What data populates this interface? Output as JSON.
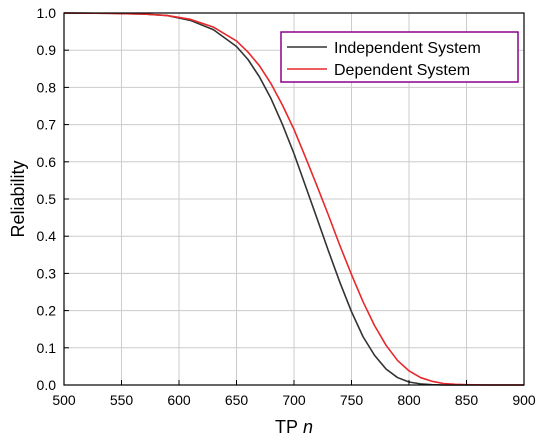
{
  "chart_data": {
    "type": "line",
    "xlabel": "TP",
    "xlabel_italic": "n",
    "ylabel": "Reliability",
    "xlim": [
      500,
      900
    ],
    "ylim": [
      0,
      1.0
    ],
    "xticks": [
      500,
      550,
      600,
      650,
      700,
      750,
      800,
      850,
      900
    ],
    "yticks": [
      0.0,
      0.1,
      0.2,
      0.3,
      0.4,
      0.5,
      0.6,
      0.7,
      0.8,
      0.9,
      1.0
    ],
    "ytick_labels": [
      "0.0",
      "0.1",
      "0.2",
      "0.3",
      "0.4",
      "0.5",
      "0.6",
      "0.7",
      "0.8",
      "0.9",
      "1.0"
    ],
    "grid": true,
    "legend_position": "top-right",
    "legend_border_color": "#8B008B",
    "series": [
      {
        "name": "Independent System",
        "color": "#333333",
        "x": [
          500,
          540,
          570,
          590,
          610,
          630,
          650,
          660,
          670,
          680,
          690,
          700,
          710,
          720,
          730,
          740,
          750,
          760,
          770,
          780,
          790,
          800,
          810,
          820,
          830,
          850,
          900
        ],
        "y": [
          1.0,
          0.999,
          0.997,
          0.993,
          0.98,
          0.955,
          0.91,
          0.875,
          0.828,
          0.77,
          0.7,
          0.622,
          0.535,
          0.448,
          0.36,
          0.275,
          0.197,
          0.13,
          0.08,
          0.043,
          0.02,
          0.008,
          0.003,
          0.001,
          0.0,
          0.0,
          0.0
        ]
      },
      {
        "name": "Dependent System",
        "color": "#E8282B",
        "x": [
          500,
          540,
          570,
          590,
          610,
          630,
          650,
          660,
          670,
          680,
          690,
          700,
          710,
          720,
          730,
          740,
          750,
          760,
          770,
          780,
          790,
          800,
          810,
          820,
          830,
          840,
          850,
          870,
          900
        ],
        "y": [
          1.0,
          0.999,
          0.997,
          0.993,
          0.983,
          0.962,
          0.925,
          0.895,
          0.858,
          0.81,
          0.752,
          0.687,
          0.612,
          0.535,
          0.456,
          0.374,
          0.297,
          0.224,
          0.16,
          0.107,
          0.066,
          0.038,
          0.02,
          0.01,
          0.004,
          0.002,
          0.001,
          0.0,
          0.0
        ]
      }
    ]
  }
}
